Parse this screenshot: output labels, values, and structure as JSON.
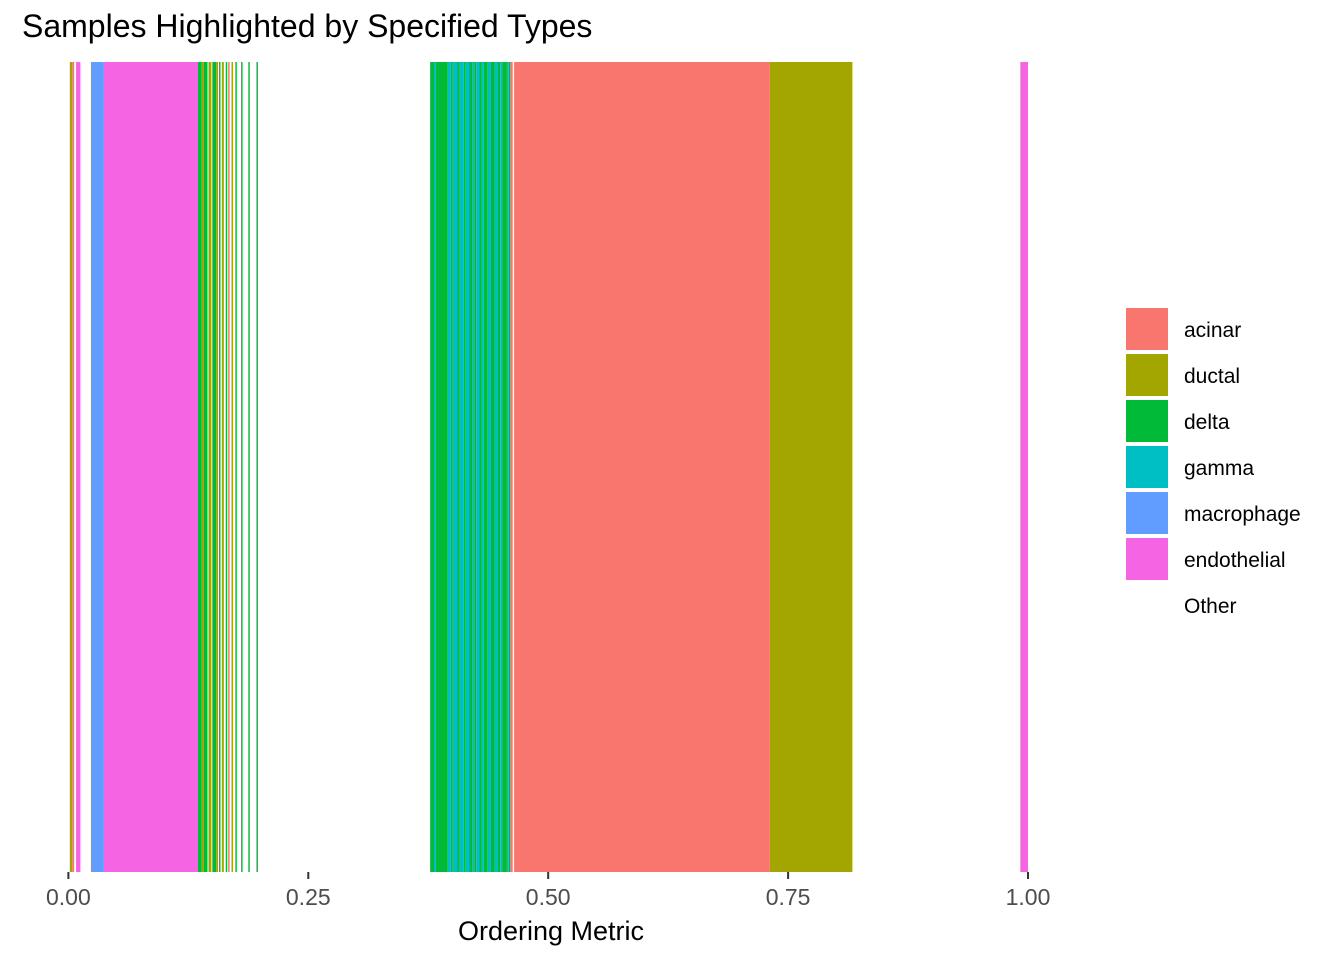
{
  "chart_data": {
    "type": "bar",
    "title": "Samples Highlighted by Specified Types",
    "xlabel": "Ordering Metric",
    "ylabel": "",
    "xlim": [
      -0.0004,
      1.0
    ],
    "x_ticks": [
      {
        "value": 0.0,
        "label": "0.00"
      },
      {
        "value": 0.25,
        "label": "0.25"
      },
      {
        "value": 0.5,
        "label": "0.50"
      },
      {
        "value": 0.75,
        "label": "0.75"
      },
      {
        "value": 1.0,
        "label": "1.00"
      }
    ],
    "grid": false,
    "legend_position": "right",
    "categories": [
      {
        "name": "acinar",
        "color": "#F8766D"
      },
      {
        "name": "ductal",
        "color": "#A3A500"
      },
      {
        "name": "delta",
        "color": "#00BA38"
      },
      {
        "name": "gamma",
        "color": "#00BFC4"
      },
      {
        "name": "macrophage",
        "color": "#619CFF"
      },
      {
        "name": "endothelial",
        "color": "#F564E3"
      },
      {
        "name": "Other",
        "color": "#FFFFFF"
      }
    ],
    "segments": [
      {
        "type": "ductal",
        "x0": 0.0015,
        "x1": 0.004
      },
      {
        "type": "acinar",
        "x0": 0.004,
        "x1": 0.006
      },
      {
        "type": "endothelial",
        "x0": 0.008,
        "x1": 0.0125
      },
      {
        "type": "macrophage",
        "x0": 0.0235,
        "x1": 0.037
      },
      {
        "type": "endothelial",
        "x0": 0.037,
        "x1": 0.135
      },
      {
        "type": "delta",
        "x0": 0.135,
        "x1": 0.139
      },
      {
        "type": "ductal",
        "x0": 0.139,
        "x1": 0.141
      },
      {
        "type": "delta",
        "x0": 0.141,
        "x1": 0.145
      },
      {
        "type": "ductal",
        "x0": 0.146,
        "x1": 0.149
      },
      {
        "type": "delta",
        "x0": 0.15,
        "x1": 0.154
      },
      {
        "type": "ductal",
        "x0": 0.154,
        "x1": 0.156
      },
      {
        "type": "delta",
        "x0": 0.157,
        "x1": 0.1585
      },
      {
        "type": "ductal",
        "x0": 0.16,
        "x1": 0.162
      },
      {
        "type": "delta",
        "x0": 0.164,
        "x1": 0.1655
      },
      {
        "type": "acinar",
        "x0": 0.1665,
        "x1": 0.168
      },
      {
        "type": "ductal",
        "x0": 0.17,
        "x1": 0.1715
      },
      {
        "type": "delta",
        "x0": 0.174,
        "x1": 0.1755
      },
      {
        "type": "delta",
        "x0": 0.18,
        "x1": 0.1815
      },
      {
        "type": "delta",
        "x0": 0.1875,
        "x1": 0.189
      },
      {
        "type": "delta",
        "x0": 0.196,
        "x1": 0.1975
      },
      {
        "type": "delta",
        "x0": 0.377,
        "x1": 0.381
      },
      {
        "type": "gamma",
        "x0": 0.381,
        "x1": 0.383
      },
      {
        "type": "delta",
        "x0": 0.383,
        "x1": 0.395
      },
      {
        "type": "gamma",
        "x0": 0.395,
        "x1": 0.3985
      },
      {
        "type": "delta",
        "x0": 0.3985,
        "x1": 0.4005
      },
      {
        "type": "gamma",
        "x0": 0.4005,
        "x1": 0.405
      },
      {
        "type": "delta",
        "x0": 0.405,
        "x1": 0.407
      },
      {
        "type": "gamma",
        "x0": 0.407,
        "x1": 0.412
      },
      {
        "type": "delta",
        "x0": 0.412,
        "x1": 0.414
      },
      {
        "type": "gamma",
        "x0": 0.414,
        "x1": 0.418
      },
      {
        "type": "delta",
        "x0": 0.418,
        "x1": 0.421
      },
      {
        "type": "gamma",
        "x0": 0.421,
        "x1": 0.423
      },
      {
        "type": "delta",
        "x0": 0.423,
        "x1": 0.425
      },
      {
        "type": "gamma",
        "x0": 0.425,
        "x1": 0.428
      },
      {
        "type": "delta",
        "x0": 0.428,
        "x1": 0.43
      },
      {
        "type": "gamma",
        "x0": 0.43,
        "x1": 0.433
      },
      {
        "type": "delta",
        "x0": 0.433,
        "x1": 0.437
      },
      {
        "type": "gamma",
        "x0": 0.437,
        "x1": 0.44
      },
      {
        "type": "delta",
        "x0": 0.44,
        "x1": 0.444
      },
      {
        "type": "gamma",
        "x0": 0.444,
        "x1": 0.447
      },
      {
        "type": "delta",
        "x0": 0.447,
        "x1": 0.45
      },
      {
        "type": "gamma",
        "x0": 0.45,
        "x1": 0.452
      },
      {
        "type": "delta",
        "x0": 0.452,
        "x1": 0.457
      },
      {
        "type": "gamma",
        "x0": 0.457,
        "x1": 0.459
      },
      {
        "type": "delta",
        "x0": 0.459,
        "x1": 0.4605
      },
      {
        "type": "acinar",
        "x0": 0.4605,
        "x1": 0.463
      },
      {
        "type": "acinar",
        "x0": 0.4645,
        "x1": 0.731
      },
      {
        "type": "ductal",
        "x0": 0.731,
        "x1": 0.817
      },
      {
        "type": "endothelial",
        "x0": 0.992,
        "x1": 1.0
      }
    ]
  }
}
